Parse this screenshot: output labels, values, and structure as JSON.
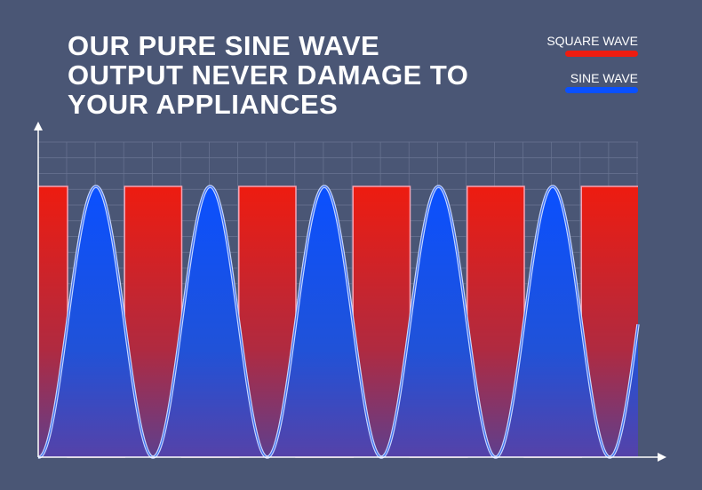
{
  "title_lines": [
    "OUR PURE SINE WAVE",
    "OUTPUT NEVER DAMAGE TO",
    "YOUR APPLIANCES"
  ],
  "legend": [
    {
      "label": "SQUARE WAVE"
    },
    {
      "label": "SINE WAVE"
    }
  ]
}
